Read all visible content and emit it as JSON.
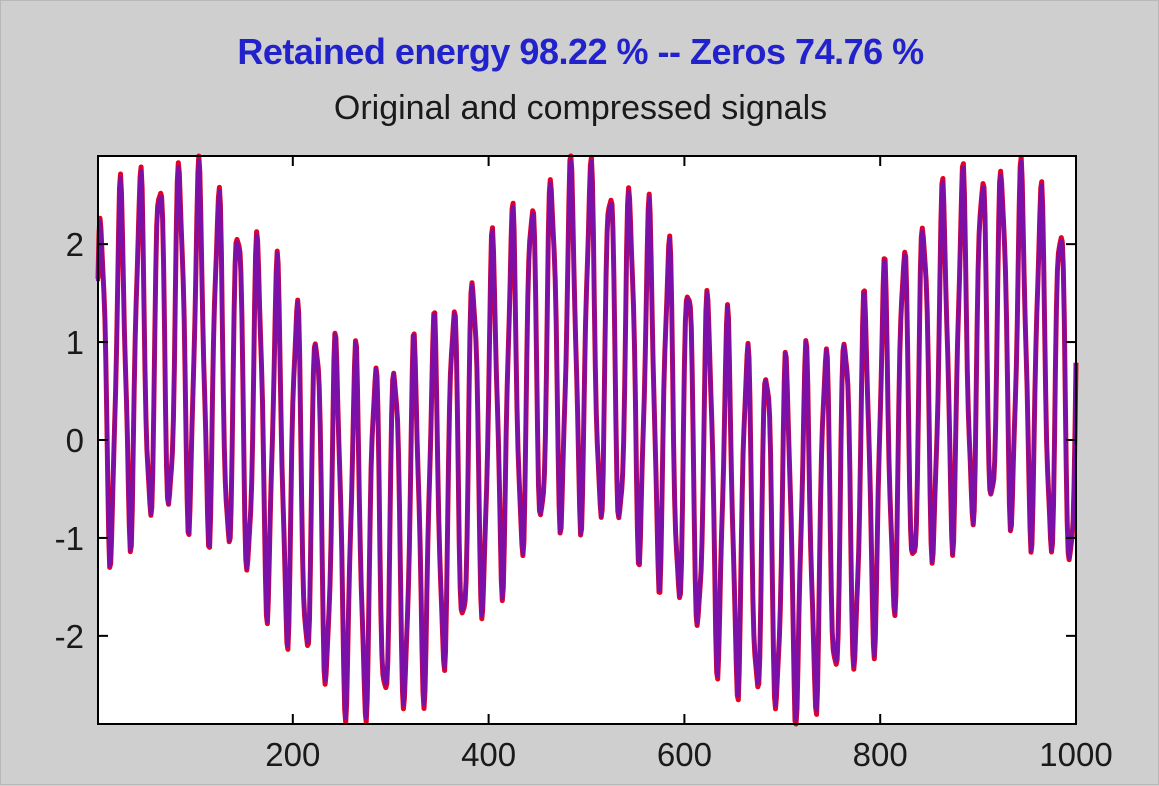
{
  "chart_data": {
    "type": "line",
    "title": "Retained energy 98.22 % -- Zeros 74.76 %",
    "subtitle": "Original and compressed signals",
    "title_color": "#2222cc",
    "xlim": [
      1,
      1000
    ],
    "ylim": [
      -2.9,
      2.9
    ],
    "x_ticks": [
      200,
      400,
      600,
      800,
      1000
    ],
    "y_ticks": [
      2,
      1,
      0,
      -1,
      -2
    ],
    "grid": false,
    "series": [
      {
        "color": "#e0002a"
      },
      {
        "color": "#7a10a8"
      }
    ],
    "signal_model": {
      "slow_amplitude": 1.0,
      "slow_period": 420,
      "slow_phase": 0.45,
      "fast_amplitude": 1.75,
      "fast_period": 20,
      "samples": 1000
    }
  }
}
